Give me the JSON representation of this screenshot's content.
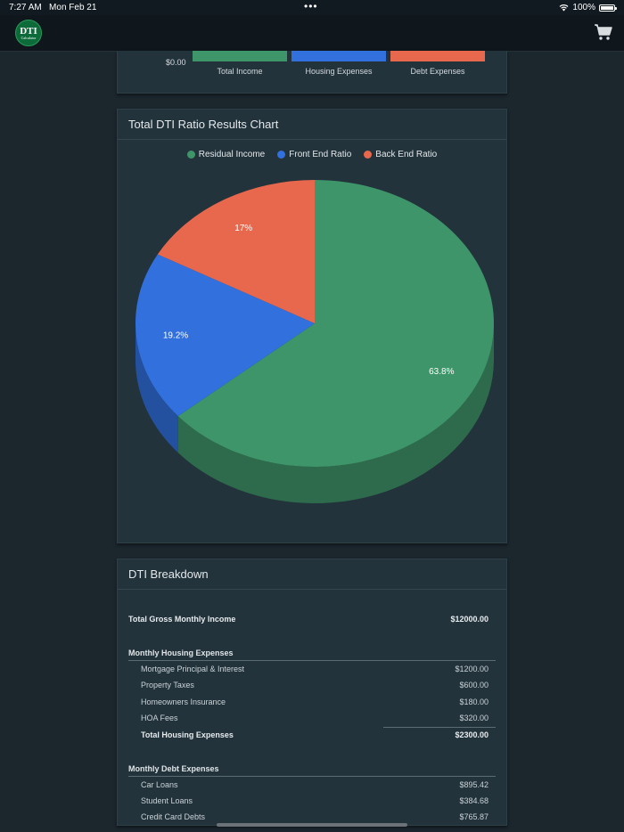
{
  "status_bar": {
    "time": "7:27 AM",
    "date": "Mon Feb 21",
    "dots": "•••",
    "battery": "100%"
  },
  "nav": {
    "logo_main": "DTI",
    "logo_sub": "Calculator",
    "cart_icon": "cart-icon"
  },
  "income_chart": {
    "zero_label": "$0.00",
    "chart_data": {
      "type": "bar",
      "categories": [
        "Total Income",
        "Housing Expenses",
        "Debt Expenses"
      ],
      "colors": [
        "#3e956a",
        "#3170dd",
        "#e8684d"
      ]
    }
  },
  "pie_card": {
    "title": "Total DTI Ratio Results Chart",
    "chart_data": {
      "type": "pie",
      "title": "Total DTI Ratio Results Chart",
      "legend_placement": "top",
      "series": [
        {
          "name": "Residual Income",
          "value": 63.8,
          "label": "63.8%",
          "color": "#3e956a"
        },
        {
          "name": "Front End Ratio",
          "value": 19.2,
          "label": "19.2%",
          "color": "#3170dd"
        },
        {
          "name": "Back End Ratio",
          "value": 17,
          "label": "17%",
          "color": "#e8684d"
        }
      ]
    }
  },
  "breakdown": {
    "title": "DTI Breakdown",
    "gross_income": {
      "label": "Total Gross Monthly Income",
      "value": "$12000.00"
    },
    "housing": {
      "title": "Monthly Housing Expenses",
      "items": [
        {
          "label": "Mortgage Principal & Interest",
          "value": "$1200.00"
        },
        {
          "label": "Property Taxes",
          "value": "$600.00"
        },
        {
          "label": "Homeowners Insurance",
          "value": "$180.00"
        },
        {
          "label": "HOA Fees",
          "value": "$320.00"
        }
      ],
      "total": {
        "label": "Total Housing Expenses",
        "value": "$2300.00"
      }
    },
    "debt": {
      "title": "Monthly Debt Expenses",
      "items": [
        {
          "label": "Car Loans",
          "value": "$895.42"
        },
        {
          "label": "Student Loans",
          "value": "$384.68"
        },
        {
          "label": "Credit Card Debts",
          "value": "$765.87"
        }
      ]
    }
  }
}
